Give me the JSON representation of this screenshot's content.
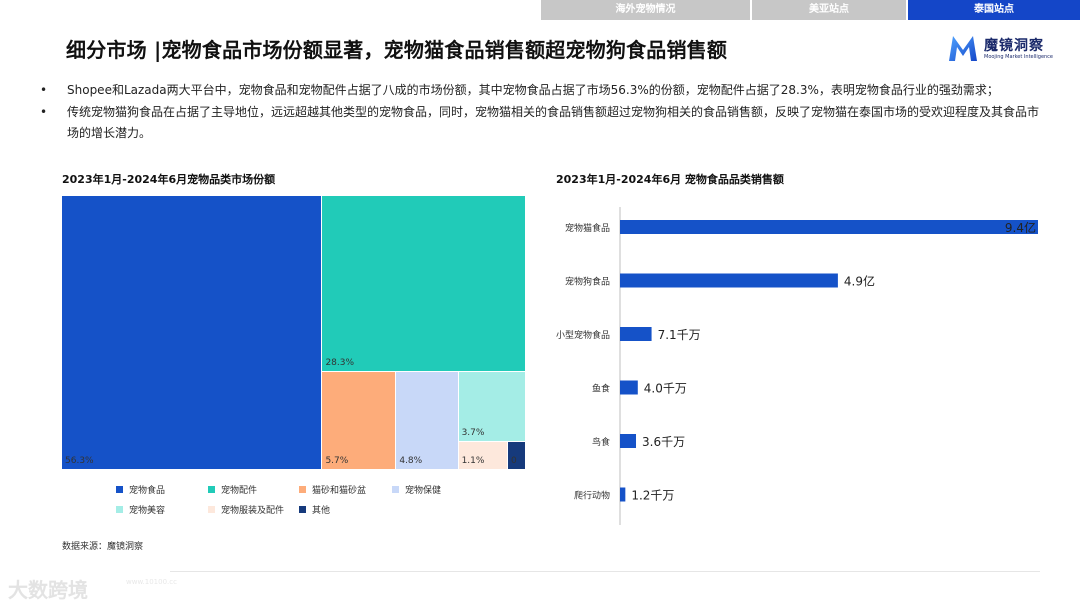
{
  "nav": {
    "tabs": [
      "海外宠物情况",
      "美亚站点",
      "泰国站点"
    ]
  },
  "header": {
    "title": "细分市场 |宠物食品市场份额显著，宠物猫食品销售额超宠物狗食品销售额"
  },
  "logo": {
    "name": "魔镜洞察",
    "subtitle": "Moojing Market Intelligence"
  },
  "bullets": [
    "Shopee和Lazada两大平台中，宠物食品和宠物配件占据了八成的市场份额，其中宠物食品占据了市场56.3%的份额，宠物配件占据了28.3%，表明宠物食品行业的强劲需求；",
    "传统宠物猫狗食品在占据了主导地位，远远超越其他类型的宠物食品，同时，宠物猫相关的食品销售额超过宠物狗相关的食品销售额，反映了宠物猫在泰国市场的受欢迎程度及其食品市场的增长潜力。"
  ],
  "bullet_symbol": "•",
  "source": "数据来源：魔镜洞察",
  "watermark": "大数跨境",
  "watermark_url": "www.10100.cc",
  "colors": {
    "pet_food": "#1552c8",
    "pet_accessories": "#21cbb8",
    "cat_litter": "#fdac7a",
    "pet_care": "#c8d8f8",
    "pet_beauty": "#a4ede6",
    "pet_clothing": "#fde8dc",
    "other": "#163a7c",
    "bar": "#1552c8",
    "nav_active": "#1446c8",
    "nav_inactive": "#c7c7c7"
  },
  "chart_data": [
    {
      "type": "treemap",
      "title": "2023年1月-2024年6月宠物品类市场份额",
      "items": [
        {
          "name": "宠物食品",
          "label": "56.3%",
          "value": 56.3,
          "color": "#1552c8"
        },
        {
          "name": "宠物配件",
          "label": "28.3%",
          "value": 28.3,
          "color": "#21cbb8"
        },
        {
          "name": "猫砂和猫砂盆",
          "label": "5.7%",
          "value": 5.7,
          "color": "#fdac7a"
        },
        {
          "name": "宠物保健",
          "label": "4.8%",
          "value": 4.8,
          "color": "#c8d8f8"
        },
        {
          "name": "宠物美容",
          "label": "3.7%",
          "value": 3.7,
          "color": "#a4ede6"
        },
        {
          "name": "宠物服装及配件",
          "label": "1.1%",
          "value": 1.1,
          "color": "#fde8dc"
        },
        {
          "name": "其他",
          "label": "0",
          "value": 0.4,
          "color": "#163a7c"
        }
      ],
      "legend": [
        "宠物食品",
        "宠物配件",
        "猫砂和猫砂盆",
        "宠物保健",
        "宠物美容",
        "宠物服装及配件",
        "其他"
      ],
      "legend_position": "bottom"
    },
    {
      "type": "bar",
      "orientation": "horizontal",
      "title": "2023年1月-2024年6月 宠物食品品类销售额",
      "categories": [
        "宠物猫食品",
        "宠物狗食品",
        "小型宠物食品",
        "鱼食",
        "鸟食",
        "爬行动物"
      ],
      "values": [
        940000000,
        490000000,
        71000000,
        40000000,
        36000000,
        12000000
      ],
      "data_labels": [
        "9.4亿",
        "4.9亿",
        "7.1千万",
        "4.0千万",
        "3.6千万",
        "1.2千万"
      ],
      "xlim": [
        0,
        940000000
      ],
      "grid": false
    }
  ]
}
